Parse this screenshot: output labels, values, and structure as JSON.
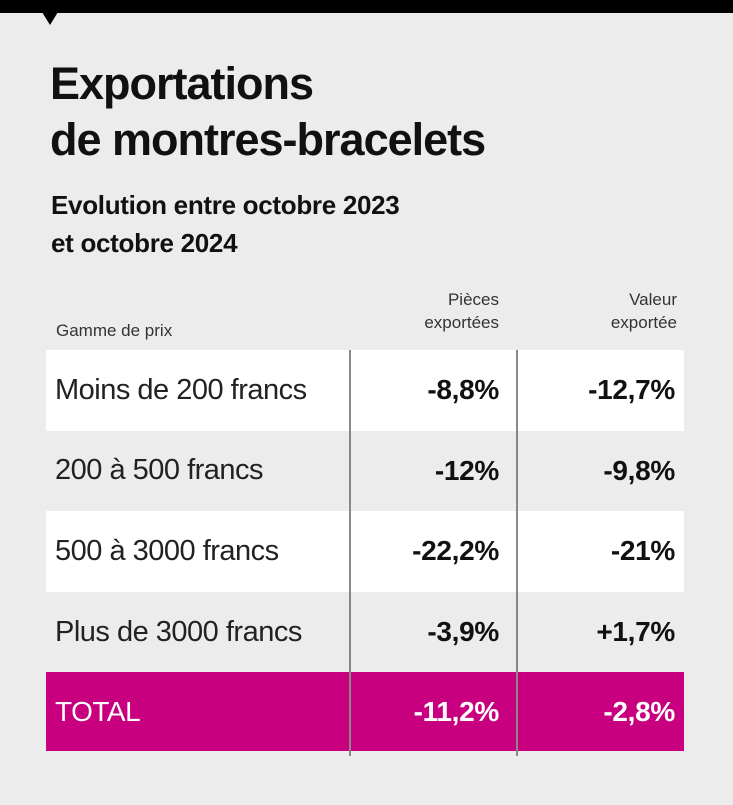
{
  "title_line1": "Exportations",
  "title_line2": "de montres-bracelets",
  "subtitle_line1": "Evolution entre octobre 2023",
  "subtitle_line2": "et octobre 2024",
  "colors": {
    "accent": "#c8007f",
    "background": "#ececec",
    "row_alt": "#ffffff",
    "bar": "#000000"
  },
  "chart_data": {
    "type": "table",
    "columns": {
      "label": "Gamme de prix",
      "pieces_line1": "Pièces",
      "pieces_line2": "exportées",
      "valeur_line1": "Valeur",
      "valeur_line2": "exportée"
    },
    "rows": [
      {
        "label": "Moins de 200 francs",
        "pieces": "-8,8%",
        "valeur": "-12,7%"
      },
      {
        "label": "200 à 500 francs",
        "pieces": "-12%",
        "valeur": "-9,8%"
      },
      {
        "label": "500 à 3000 francs",
        "pieces": "-22,2%",
        "valeur": "-21%"
      },
      {
        "label": "Plus de 3000 francs",
        "pieces": "-3,9%",
        "valeur": "+1,7%"
      }
    ],
    "total": {
      "label": "TOTAL",
      "pieces": "-11,2%",
      "valeur": "-2,8%"
    }
  }
}
